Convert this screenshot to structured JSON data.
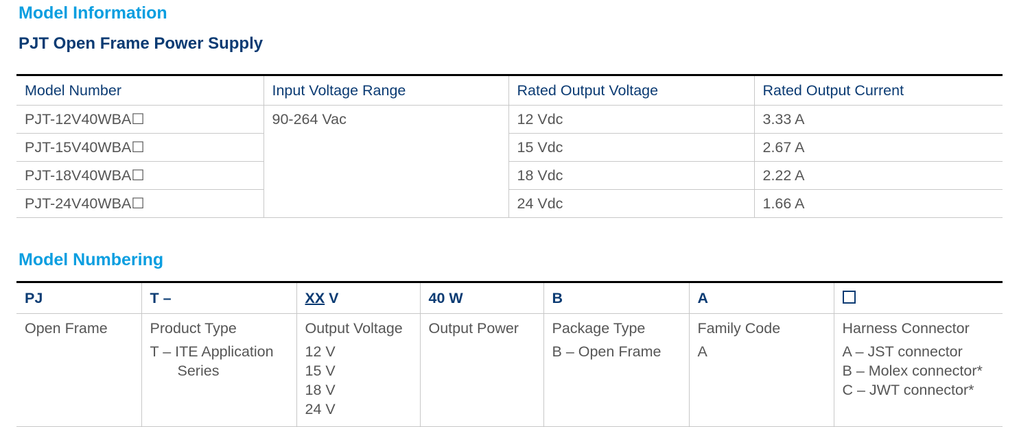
{
  "model_information": {
    "title": "Model Information",
    "subtitle": "PJT Open Frame Power Supply",
    "headers": [
      "Model Number",
      "Input Voltage Range",
      "Rated Output Voltage",
      "Rated Output Current"
    ],
    "input_voltage": "90-264 Vac",
    "rows": [
      {
        "model": "PJT-12V40WBA☐",
        "voltage": "12 Vdc",
        "current": "3.33 A"
      },
      {
        "model": "PJT-15V40WBA☐",
        "voltage": "15 Vdc",
        "current": "2.67 A"
      },
      {
        "model": "PJT-18V40WBA☐",
        "voltage": "18 Vdc",
        "current": "2.22 A"
      },
      {
        "model": "PJT-24V40WBA☐",
        "voltage": "24 Vdc",
        "current": "1.66 A"
      }
    ]
  },
  "model_numbering": {
    "title": "Model Numbering",
    "codes": [
      "PJ",
      "T –",
      "XX",
      "V",
      "40 W",
      "B",
      "A"
    ],
    "columns": [
      {
        "label": "Open Frame",
        "items": []
      },
      {
        "label": "Product Type",
        "items": [
          "T – ITE Application",
          "Series"
        ]
      },
      {
        "label": "Output Voltage",
        "items": [
          "12 V",
          "15 V",
          "18 V",
          "24 V"
        ]
      },
      {
        "label": "Output Power",
        "items": []
      },
      {
        "label": "Package Type",
        "items": [
          "B – Open Frame"
        ]
      },
      {
        "label": "Family Code",
        "items": [
          "A"
        ]
      },
      {
        "label": "Harness Connector",
        "items": [
          "A – JST connector",
          "B – Molex connector*",
          "C – JWT connector*"
        ]
      }
    ]
  },
  "colors": {
    "heading": "#0a9ee0",
    "header_text": "#0b3b73",
    "body_text": "#555555"
  }
}
